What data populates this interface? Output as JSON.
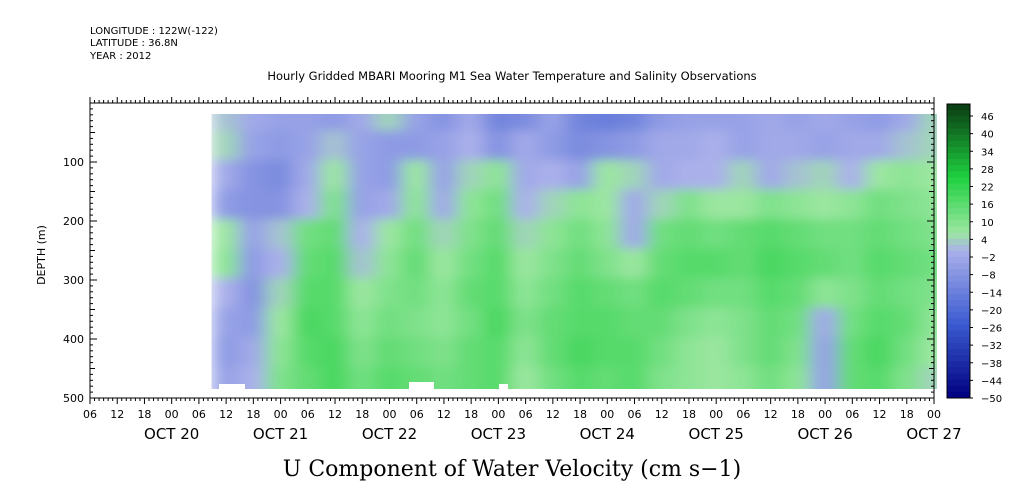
{
  "header": {
    "longitude": "LONGITUDE : 122W(-122)",
    "latitude": "LATITUDE : 36.8N",
    "year": "YEAR : 2012",
    "title": "Hourly Gridded MBARI Mooring M1 Sea Water Temperature and Salinity Observations"
  },
  "axes": {
    "ylabel": "DEPTH (m)",
    "xlabel": "U Component of Water Velocity (cm s−1)",
    "y_ticks": [
      "100",
      "200",
      "300",
      "400",
      "500"
    ],
    "hour_ticks": [
      "06",
      "12",
      "18",
      "00",
      "06",
      "12",
      "18",
      "00",
      "06",
      "12",
      "18",
      "00",
      "06",
      "12",
      "18",
      "00",
      "06",
      "12",
      "18",
      "00",
      "06",
      "12",
      "18",
      "00",
      "06",
      "12",
      "18",
      "00",
      "06",
      "12",
      "18",
      "00"
    ],
    "date_labels": [
      "OCT 20",
      "OCT 21",
      "OCT 22",
      "OCT 23",
      "OCT 24",
      "OCT 25",
      "OCT 26",
      "OCT 27"
    ]
  },
  "colorbar": {
    "labels": [
      "46",
      "40",
      "34",
      "28",
      "22",
      "16",
      "10",
      "4",
      "−2",
      "−8",
      "−14",
      "−20",
      "−26",
      "−32",
      "−38",
      "−44",
      "−50"
    ]
  },
  "colors": {
    "neg_deep": "#000080",
    "neg_mid": "#3a5ad0",
    "neg_light": "#aab0ea",
    "pos_light": "#9be6a0",
    "pos_mid": "#1ed040",
    "pos_deep": "#0a3a12"
  },
  "chart_data": {
    "type": "heatmap",
    "title": "Hourly Gridded MBARI Mooring M1 Sea Water Temperature and Salinity Observations",
    "xlabel": "U Component of Water Velocity (cm s−1)",
    "ylabel": "DEPTH (m)",
    "x_range": [
      "2012-10-19T06:00",
      "2012-10-27T00:00"
    ],
    "y_range": [
      500,
      0
    ],
    "y_inverted": true,
    "data_x_range": [
      "2012-10-20T12:00",
      "2012-10-26T24:00"
    ],
    "data_depth_range": [
      20,
      490
    ],
    "colorbar_range": [
      -50,
      46
    ],
    "colorbar_step": 2,
    "colorbar_units": "cm s−1",
    "times": [
      "OCT 20 12",
      "OCT 20 18",
      "OCT 21 00",
      "OCT 21 06",
      "OCT 21 12",
      "OCT 21 18",
      "OCT 22 00",
      "OCT 22 06",
      "OCT 22 12",
      "OCT 22 18",
      "OCT 23 00",
      "OCT 23 06",
      "OCT 23 12",
      "OCT 23 18",
      "OCT 24 00",
      "OCT 24 06",
      "OCT 24 12",
      "OCT 24 18",
      "OCT 25 00",
      "OCT 25 06",
      "OCT 25 12",
      "OCT 25 18",
      "OCT 26 00",
      "OCT 26 06",
      "OCT 26 12",
      "OCT 26 18",
      "OCT 27 00"
    ],
    "depths": [
      25,
      75,
      125,
      175,
      225,
      275,
      325,
      375,
      425,
      475
    ],
    "values": [
      [
        0,
        -4,
        -6,
        -6,
        -8,
        -4,
        2,
        -6,
        -10,
        -4,
        -14,
        -12,
        -6,
        -14,
        -16,
        -14,
        -8,
        -6,
        -6,
        -6,
        -4,
        -6,
        -4,
        -6,
        -8,
        -4,
        2
      ],
      [
        2,
        -6,
        -8,
        -6,
        0,
        -6,
        -8,
        -8,
        -6,
        -2,
        -10,
        -4,
        -8,
        -12,
        -10,
        -8,
        -4,
        -4,
        -2,
        -6,
        -4,
        -4,
        -6,
        -4,
        -4,
        0,
        2
      ],
      [
        -4,
        -10,
        -12,
        -4,
        4,
        -6,
        -8,
        4,
        -6,
        2,
        6,
        -4,
        -2,
        -6,
        4,
        2,
        -4,
        -2,
        -2,
        2,
        -4,
        0,
        2,
        -2,
        4,
        6,
        4
      ],
      [
        -8,
        -10,
        -10,
        -2,
        8,
        -6,
        -4,
        6,
        -4,
        6,
        10,
        -2,
        2,
        6,
        4,
        -4,
        2,
        8,
        4,
        4,
        8,
        6,
        4,
        6,
        10,
        8,
        6
      ],
      [
        4,
        -6,
        0,
        10,
        12,
        -2,
        4,
        10,
        2,
        8,
        12,
        2,
        6,
        10,
        6,
        -4,
        10,
        12,
        10,
        12,
        14,
        12,
        10,
        10,
        12,
        10,
        8
      ],
      [
        6,
        -8,
        -2,
        12,
        14,
        0,
        6,
        12,
        4,
        10,
        14,
        4,
        8,
        12,
        8,
        4,
        12,
        14,
        14,
        12,
        16,
        14,
        12,
        10,
        14,
        12,
        10
      ],
      [
        -2,
        -10,
        2,
        14,
        14,
        4,
        8,
        10,
        6,
        12,
        14,
        6,
        10,
        14,
        12,
        10,
        14,
        12,
        10,
        10,
        14,
        12,
        6,
        8,
        12,
        10,
        8
      ],
      [
        -6,
        -8,
        4,
        16,
        14,
        6,
        10,
        8,
        6,
        10,
        16,
        8,
        12,
        14,
        14,
        12,
        12,
        8,
        6,
        8,
        12,
        10,
        -4,
        10,
        14,
        12,
        6
      ],
      [
        -8,
        -4,
        6,
        14,
        16,
        8,
        12,
        10,
        8,
        12,
        14,
        6,
        12,
        16,
        14,
        14,
        10,
        6,
        4,
        8,
        12,
        8,
        -6,
        12,
        16,
        10,
        4
      ],
      [
        -6,
        -2,
        8,
        12,
        16,
        10,
        14,
        12,
        10,
        12,
        14,
        4,
        10,
        14,
        12,
        14,
        8,
        6,
        4,
        6,
        10,
        6,
        -6,
        12,
        14,
        8,
        2
      ]
    ]
  }
}
